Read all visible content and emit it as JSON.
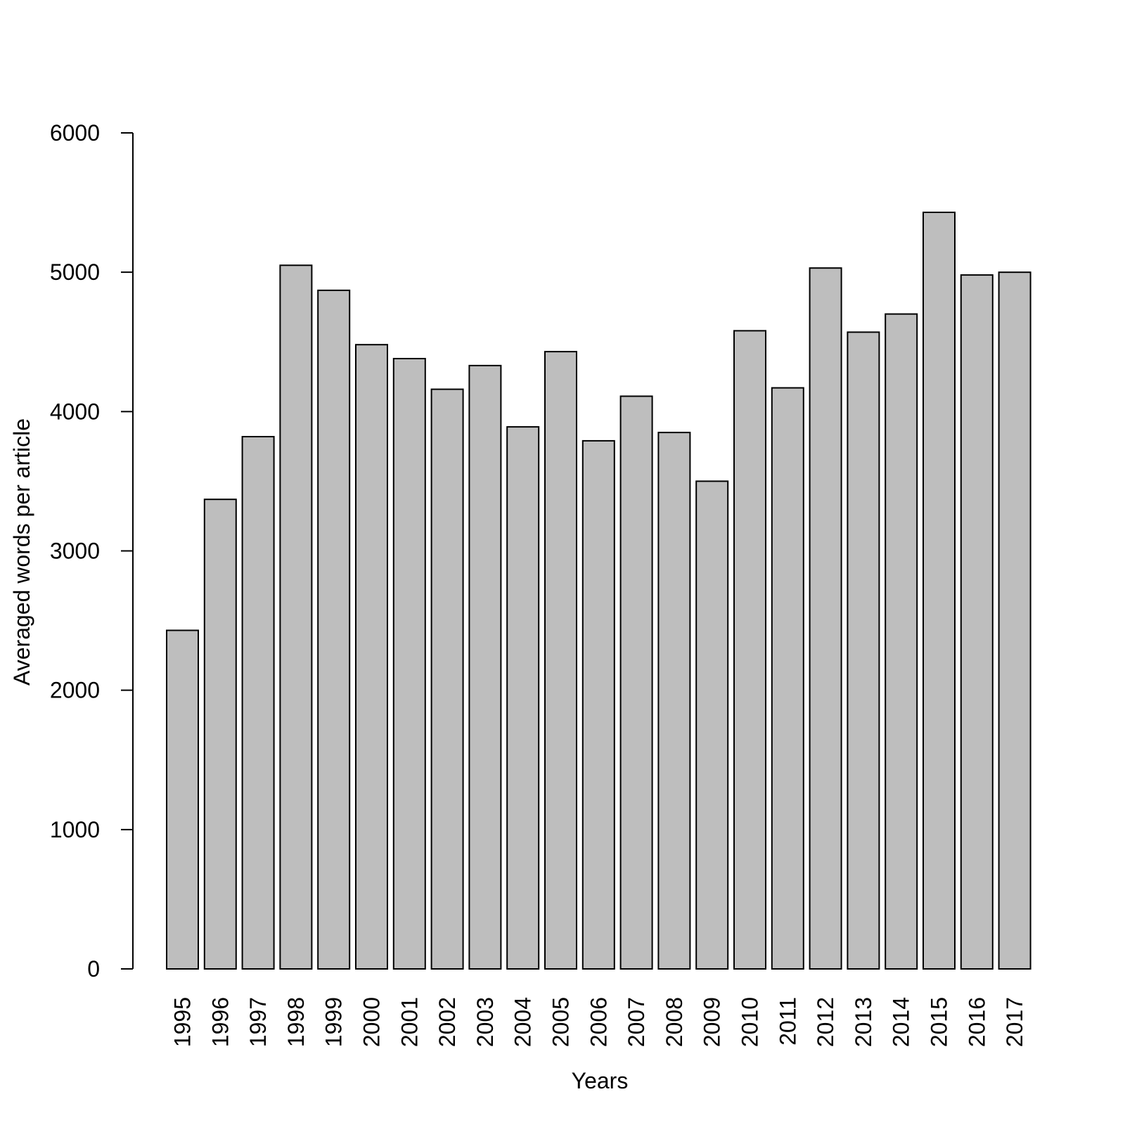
{
  "chart_data": {
    "type": "bar",
    "title": "",
    "xlabel": "Years",
    "ylabel": "Averaged words per article",
    "categories": [
      "1995",
      "1996",
      "1997",
      "1998",
      "1999",
      "2000",
      "2001",
      "2002",
      "2003",
      "2004",
      "2005",
      "2006",
      "2007",
      "2008",
      "2009",
      "2010",
      "2011",
      "2012",
      "2013",
      "2014",
      "2015",
      "2016",
      "2017"
    ],
    "values": [
      2430,
      3370,
      3820,
      5050,
      4870,
      4480,
      4380,
      4160,
      4330,
      3890,
      4430,
      3790,
      4110,
      3850,
      3500,
      4580,
      4170,
      5030,
      4570,
      4700,
      5430,
      4980,
      5000
    ],
    "ylim": [
      0,
      6000
    ],
    "yticks": [
      0,
      1000,
      2000,
      3000,
      4000,
      5000,
      6000
    ],
    "bar_color": "#bebebe",
    "bar_edge_color": "#000000",
    "grid": false,
    "legend": "none"
  }
}
